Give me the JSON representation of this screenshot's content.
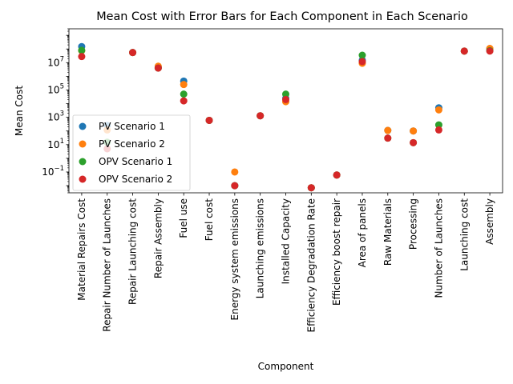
{
  "chart_data": {
    "type": "scatter",
    "title": "Mean Cost with Error Bars for Each Component in Each Scenario",
    "xlabel": "Component",
    "ylabel": "Mean Cost",
    "yscale": "log",
    "ylim": [
      0.003,
      3000000000
    ],
    "yticks": [
      {
        "value": 0.1,
        "base": "10",
        "exp": "−1"
      },
      {
        "value": 10,
        "base": "10",
        "exp": "1"
      },
      {
        "value": 1000,
        "base": "10",
        "exp": "3"
      },
      {
        "value": 100000,
        "base": "10",
        "exp": "5"
      },
      {
        "value": 10000000,
        "base": "10",
        "exp": "7"
      }
    ],
    "grid": false,
    "legend_position": "center-left",
    "categories": [
      "Material Repairs Cost",
      "Repair Number of Launches",
      "Repair Launching cost",
      "Repair Assembly",
      "Fuel use",
      "Fuel cost",
      "Energy system emissions",
      "Launching emissions",
      "Installed Capacity",
      "Efficiency Degradation Rate",
      "Efficiency boost repair",
      "Area of panels",
      "Raw Materials",
      "Processing",
      "Number of Launches",
      "Launching cost",
      "Assembly"
    ],
    "series": [
      {
        "name": "PV Scenario 1",
        "color": "#1f77b4",
        "values": [
          150000000,
          250,
          55000000,
          4500000,
          450000,
          600,
          0.01,
          1300,
          25000,
          0.007,
          0.06,
          15000000,
          110,
          100,
          5000,
          70000000,
          100000000
        ]
      },
      {
        "name": "PV Scenario 2",
        "color": "#ff7f0e",
        "values": [
          75000000,
          120,
          55000000,
          5500000,
          250000,
          600,
          0.1,
          1300,
          14000,
          0.007,
          0.06,
          9000000,
          110,
          100,
          3500,
          70000000,
          110000000
        ]
      },
      {
        "name": "OPV Scenario 1",
        "color": "#2ca02c",
        "values": [
          80000000,
          15,
          55000000,
          4000000,
          50000,
          600,
          0.01,
          1300,
          50000,
          0.007,
          0.06,
          35000000,
          30,
          14,
          280,
          70000000,
          75000000
        ]
      },
      {
        "name": "OPV Scenario 2",
        "color": "#d62728",
        "values": [
          28000000,
          5,
          55000000,
          4000000,
          16000,
          600,
          0.01,
          1300,
          20000,
          0.007,
          0.06,
          12000000,
          30,
          14,
          120,
          70000000,
          70000000
        ]
      }
    ]
  }
}
